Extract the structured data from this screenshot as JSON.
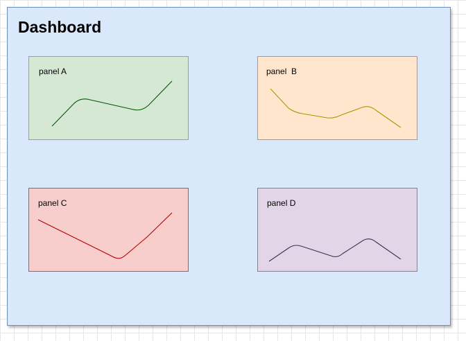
{
  "dashboard": {
    "title": "Dashboard"
  },
  "panels": [
    {
      "id": "a",
      "label": "panel A",
      "line_color": "#005700",
      "fill": "#d5e8d4",
      "border": "#82b366"
    },
    {
      "id": "b",
      "label": "panel  B",
      "line_color": "#b09500",
      "fill": "#ffe6cc",
      "border": "#d79b00"
    },
    {
      "id": "c",
      "label": "panel C",
      "line_color": "#b20000",
      "fill": "#f8cecc",
      "border": "#b85450"
    },
    {
      "id": "d",
      "label": "panel D",
      "line_color": "#432d57",
      "fill": "#e1d5e7",
      "border": "#9673a6"
    }
  ]
}
